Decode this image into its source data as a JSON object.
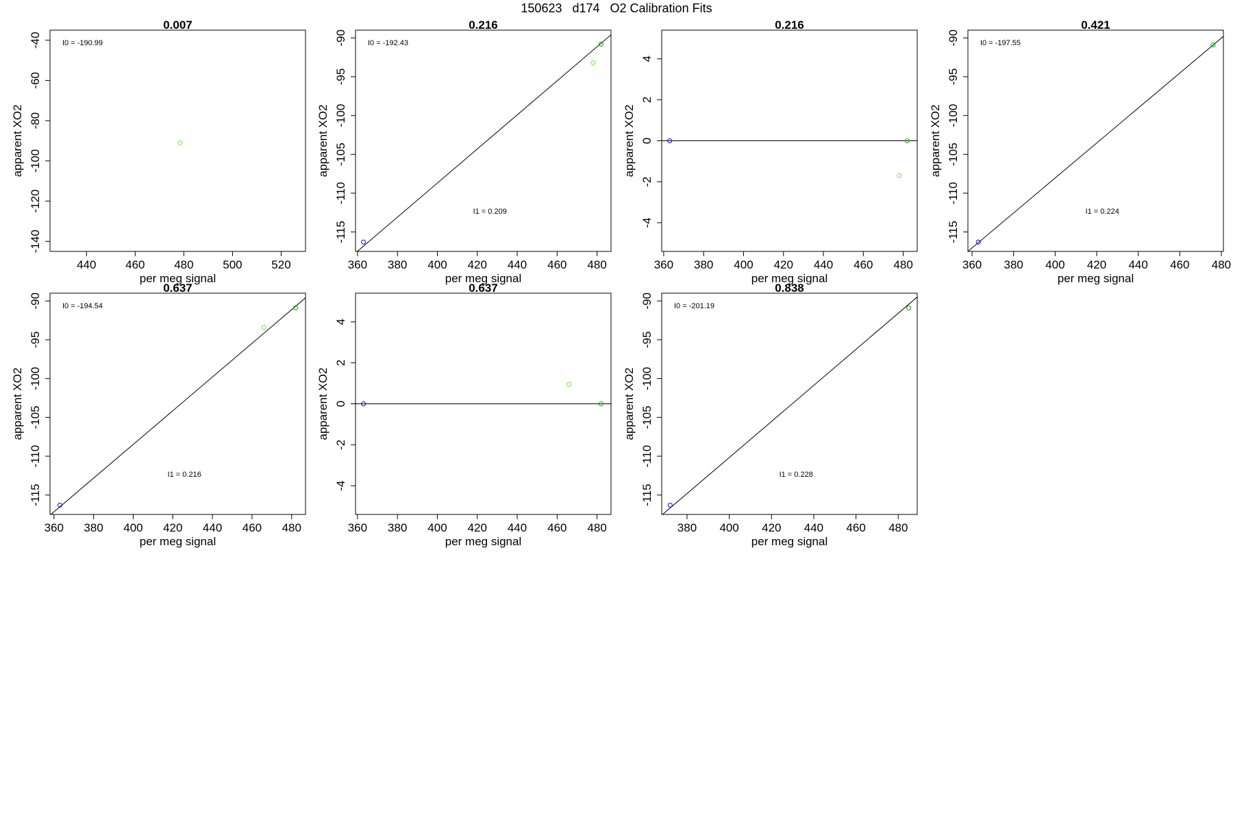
{
  "figure": {
    "title": "150623   d174   O2 Calibration Fits",
    "colors": {
      "axes": "#000000",
      "fit_line": "#000000",
      "point_blue": "#0000ff",
      "point_green": "#00aa00",
      "point_lightgreen": "#66ee44"
    }
  },
  "chart_data": [
    {
      "type": "scatter",
      "title": "0.007",
      "xlabel": "per meg signal",
      "ylabel": "apparent XO2",
      "xlim": [
        425,
        530
      ],
      "ylim": [
        -145,
        -35
      ],
      "xticks": [
        440,
        460,
        480,
        500,
        520
      ],
      "yticks": [
        -40,
        -60,
        -80,
        -100,
        -120,
        -140
      ],
      "points": [
        {
          "x": 478.5,
          "y": -91,
          "color": "#66ee44"
        }
      ],
      "fit_line": null,
      "hline_y": null,
      "annotations": [
        {
          "label": "I0 =",
          "value": "-190.99"
        }
      ]
    },
    {
      "type": "scatter",
      "title": "0.216",
      "xlabel": "per meg signal",
      "ylabel": "apparent XO2",
      "xlim": [
        359,
        487
      ],
      "ylim": [
        -117.5,
        -89
      ],
      "xticks": [
        360,
        380,
        400,
        420,
        440,
        460,
        480
      ],
      "yticks": [
        -90,
        -95,
        -100,
        -105,
        -110,
        -115
      ],
      "points": [
        {
          "x": 363,
          "y": -116.3,
          "color": "#0000ff"
        },
        {
          "x": 478,
          "y": -93.2,
          "color": "#66ee44"
        },
        {
          "x": 482,
          "y": -90.8,
          "color": "#00aa00"
        }
      ],
      "fit_line": [
        [
          359,
          -117.7
        ],
        [
          487,
          -89.6
        ]
      ],
      "hline_y": null,
      "annotations": [
        {
          "label": "I0 =",
          "value": "-192.43"
        },
        {
          "label": "I1 =",
          "value": "0.209"
        }
      ]
    },
    {
      "type": "scatter",
      "title": "0.216",
      "xlabel": "per meg signal",
      "ylabel": "apparent XO2",
      "xlim": [
        359,
        487
      ],
      "ylim": [
        -5.4,
        5.4
      ],
      "xticks": [
        360,
        380,
        400,
        420,
        440,
        460,
        480
      ],
      "yticks": [
        4,
        2,
        0,
        -2,
        -4
      ],
      "points": [
        {
          "x": 363,
          "y": 0,
          "color": "#0000ff"
        },
        {
          "x": 478,
          "y": -1.7,
          "color": "#66ee44"
        },
        {
          "x": 482,
          "y": 0,
          "color": "#00aa00"
        }
      ],
      "fit_line": null,
      "hline_y": 0,
      "annotations": []
    },
    {
      "type": "scatter",
      "title": "0.421",
      "xlabel": "per meg signal",
      "ylabel": "apparent XO2",
      "xlim": [
        358,
        481
      ],
      "ylim": [
        -117.5,
        -89
      ],
      "xticks": [
        360,
        380,
        400,
        420,
        440,
        460,
        480
      ],
      "yticks": [
        -90,
        -95,
        -100,
        -105,
        -110,
        -115
      ],
      "points": [
        {
          "x": 363,
          "y": -116.3,
          "color": "#0000ff"
        },
        {
          "x": 476,
          "y": -90.9,
          "color": "#00aa00"
        }
      ],
      "fit_line": [
        [
          358,
          -117.5
        ],
        [
          481,
          -89.8
        ]
      ],
      "hline_y": null,
      "annotations": [
        {
          "label": "I0 =",
          "value": "-197.55"
        },
        {
          "label": "I1 =",
          "value": "0.224"
        }
      ]
    },
    {
      "type": "scatter",
      "title": "0.637",
      "xlabel": "per meg signal",
      "ylabel": "apparent XO2",
      "xlim": [
        358,
        487
      ],
      "ylim": [
        -117.5,
        -89
      ],
      "xticks": [
        360,
        380,
        400,
        420,
        440,
        460,
        480
      ],
      "yticks": [
        -90,
        -95,
        -100,
        -105,
        -110,
        -115
      ],
      "points": [
        {
          "x": 363,
          "y": -116.3,
          "color": "#0000ff"
        },
        {
          "x": 466,
          "y": -93.4,
          "color": "#66ee44"
        },
        {
          "x": 482,
          "y": -90.9,
          "color": "#00aa00"
        }
      ],
      "fit_line": [
        [
          358,
          -117.6
        ],
        [
          487,
          -89.6
        ]
      ],
      "hline_y": null,
      "annotations": [
        {
          "label": "I0 =",
          "value": "-194.54"
        },
        {
          "label": "I1 =",
          "value": "0.216"
        }
      ]
    },
    {
      "type": "scatter",
      "title": "0.637",
      "xlabel": "per meg signal",
      "ylabel": "apparent XO2",
      "xlim": [
        359,
        487
      ],
      "ylim": [
        -5.4,
        5.4
      ],
      "xticks": [
        360,
        380,
        400,
        420,
        440,
        460,
        480
      ],
      "yticks": [
        4,
        2,
        0,
        -2,
        -4
      ],
      "points": [
        {
          "x": 363,
          "y": 0,
          "color": "#0000ff"
        },
        {
          "x": 466,
          "y": 0.95,
          "color": "#66ee44"
        },
        {
          "x": 482,
          "y": 0,
          "color": "#00aa00"
        }
      ],
      "fit_line": null,
      "hline_y": 0,
      "annotations": []
    },
    {
      "type": "scatter",
      "title": "0.838",
      "xlabel": "per meg signal",
      "ylabel": "apparent XO2",
      "xlim": [
        368,
        489
      ],
      "ylim": [
        -117.5,
        -89
      ],
      "xticks": [
        380,
        400,
        420,
        440,
        460,
        480
      ],
      "yticks": [
        -90,
        -95,
        -100,
        -105,
        -110,
        -115
      ],
      "points": [
        {
          "x": 372,
          "y": -116.3,
          "color": "#0000ff"
        },
        {
          "x": 485,
          "y": -90.9,
          "color": "#00aa00"
        }
      ],
      "fit_line": [
        [
          368,
          -117.6
        ],
        [
          489,
          -89.5
        ]
      ],
      "hline_y": null,
      "annotations": [
        {
          "label": "I0 =",
          "value": "-201.19"
        },
        {
          "label": "I1 =",
          "value": "0.228"
        }
      ]
    }
  ]
}
